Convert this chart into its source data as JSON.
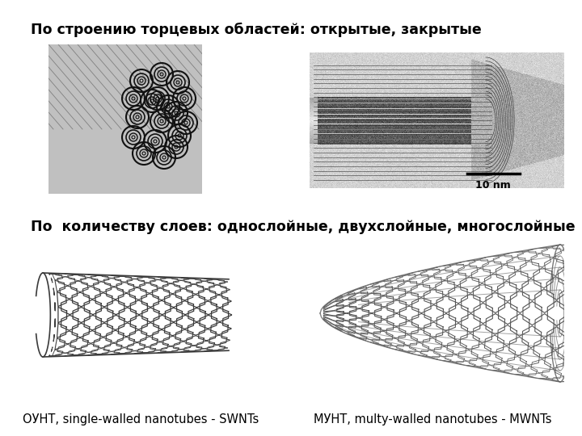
{
  "background_color": "#ffffff",
  "title1": "По строению торцевых областей: открытые, закрытые",
  "title2": "По  количеству слоев: однослойные, двухслойные, многослойные",
  "label_left": "ОУНТ, single-walled nanotubes - SWNTs",
  "label_right": "МУНТ, multy-walled nanotubes - MWNTs",
  "scale_text": "10 nm",
  "title1_fontsize": 12.5,
  "title2_fontsize": 12.5,
  "label_fontsize": 10.5,
  "fig_width": 7.2,
  "fig_height": 5.4,
  "dpi": 100
}
